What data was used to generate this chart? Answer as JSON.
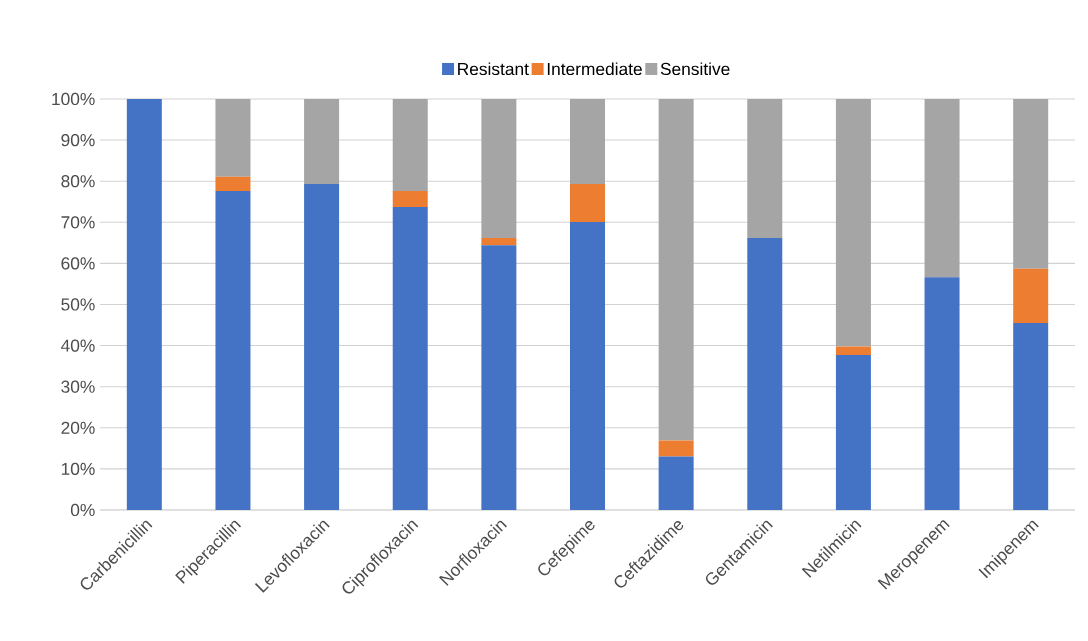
{
  "chart_data": {
    "type": "bar",
    "stacked": true,
    "categories": [
      "Carbenicillin",
      "Piperacillin",
      "Levofloxacin",
      "Ciprofloxacin",
      "Norfloxacin",
      "Cefepime",
      "Ceftazidime",
      "Gentamicin",
      "Netilmicin",
      "Meropenem",
      "Imipenem"
    ],
    "series": [
      {
        "name": "Resistant",
        "color": "#4472c4",
        "values": [
          100,
          77.6,
          79.3,
          73.7,
          64.4,
          70.1,
          13.0,
          66.2,
          37.7,
          56.6,
          45.5
        ]
      },
      {
        "name": "Intermediate",
        "color": "#ed7d31",
        "values": [
          0,
          3.5,
          0,
          3.9,
          1.8,
          9.2,
          3.9,
          0,
          2.1,
          0,
          13.2
        ]
      },
      {
        "name": "Sensitive",
        "color": "#a5a5a5",
        "values": [
          0,
          18.9,
          20.7,
          22.4,
          33.8,
          20.7,
          83.1,
          33.8,
          60.2,
          43.4,
          41.3
        ]
      }
    ],
    "ylim": [
      0,
      100
    ],
    "yticks": [
      {
        "value": 0,
        "label": "0%"
      },
      {
        "value": 10,
        "label": "10%"
      },
      {
        "value": 20,
        "label": "20%"
      },
      {
        "value": 30,
        "label": "30%"
      },
      {
        "value": 40,
        "label": "40%"
      },
      {
        "value": 50,
        "label": "50%"
      },
      {
        "value": 60,
        "label": "60%"
      },
      {
        "value": 70,
        "label": "70%"
      },
      {
        "value": 80,
        "label": "80%"
      },
      {
        "value": 90,
        "label": "90%"
      },
      {
        "value": 100,
        "label": "100%"
      }
    ],
    "grid": "y",
    "legend": "top"
  }
}
